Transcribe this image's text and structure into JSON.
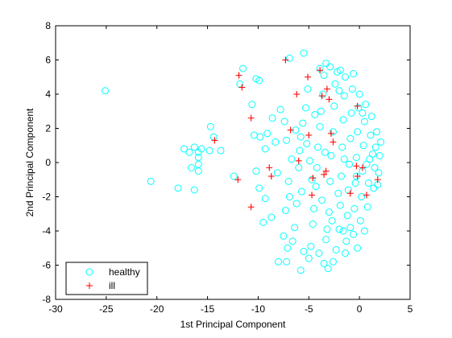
{
  "chart_data": {
    "type": "scatter",
    "title": "",
    "xlabel": "1st Principal Component",
    "ylabel": "2nd Principal Component",
    "xlim": [
      -30,
      5
    ],
    "ylim": [
      -8,
      8
    ],
    "x_ticks": [
      "-30",
      "-25",
      "-20",
      "-15",
      "-10",
      "-5",
      "0",
      "5"
    ],
    "y_ticks": [
      "-8",
      "-6",
      "-4",
      "-2",
      "0",
      "2",
      "4",
      "6",
      "8"
    ],
    "x_tick_values": [
      -30,
      -25,
      -20,
      -15,
      -10,
      -5,
      0,
      5
    ],
    "y_tick_values": [
      -8,
      -6,
      -4,
      -2,
      0,
      2,
      4,
      6,
      8
    ],
    "grid": false,
    "legend_position": "bottom-left",
    "colors": {
      "healthy": "#00ffff",
      "ill": "#ff0000",
      "axes": "#000000"
    },
    "series": [
      {
        "name": "healthy",
        "marker": "circle",
        "points": [
          [
            -25.1,
            4.2
          ],
          [
            -20.6,
            -1.1
          ],
          [
            -17.9,
            -1.5
          ],
          [
            -16.3,
            -1.6
          ],
          [
            -17.3,
            0.8
          ],
          [
            -16.8,
            0.6
          ],
          [
            -16.6,
            -0.3
          ],
          [
            -16.3,
            0.9
          ],
          [
            -15.9,
            0.6
          ],
          [
            -15.9,
            0.3
          ],
          [
            -15.9,
            -0.1
          ],
          [
            -15.9,
            -0.5
          ],
          [
            -15.6,
            0.8
          ],
          [
            -14.7,
            2.1
          ],
          [
            -14.8,
            0.7
          ],
          [
            -14.4,
            1.5
          ],
          [
            -13.7,
            0.7
          ],
          [
            -12.4,
            -0.8
          ],
          [
            -11.5,
            5.5
          ],
          [
            -11.8,
            4.6
          ],
          [
            -10.2,
            4.9
          ],
          [
            -9.9,
            4.8
          ],
          [
            -10.6,
            3.4
          ],
          [
            -10.4,
            1.6
          ],
          [
            -9.8,
            1.5
          ],
          [
            -9.1,
            1.7
          ],
          [
            -9.3,
            0.8
          ],
          [
            -10.2,
            -0.5
          ],
          [
            -9.9,
            -1.5
          ],
          [
            -9.3,
            -2.1
          ],
          [
            -9.5,
            -3.5
          ],
          [
            -8.7,
            -3.2
          ],
          [
            -8.6,
            2.6
          ],
          [
            -8.3,
            1.2
          ],
          [
            -8.1,
            -0.6
          ],
          [
            -7.8,
            3.1
          ],
          [
            -7.4,
            2.4
          ],
          [
            -7.2,
            1.3
          ],
          [
            -7.0,
            -1.1
          ],
          [
            -6.9,
            -2.0
          ],
          [
            -7.3,
            -2.8
          ],
          [
            -7.5,
            -4.3
          ],
          [
            -7.1,
            -5.0
          ],
          [
            -8.0,
            -5.8
          ],
          [
            -7.2,
            -5.8
          ],
          [
            -6.6,
            -4.6
          ],
          [
            -6.4,
            -3.8
          ],
          [
            -6.2,
            -2.4
          ],
          [
            -6.0,
            -0.3
          ],
          [
            -5.9,
            0.7
          ],
          [
            -5.8,
            1.5
          ],
          [
            -5.6,
            2.3
          ],
          [
            -5.3,
            3.2
          ],
          [
            -5.1,
            4.3
          ],
          [
            -5.5,
            6.4
          ],
          [
            -6.9,
            6.1
          ],
          [
            -5.5,
            -5.2
          ],
          [
            -5.8,
            -6.3
          ],
          [
            -5.0,
            -5.6
          ],
          [
            -4.8,
            -4.9
          ],
          [
            -4.6,
            -3.6
          ],
          [
            -4.5,
            -2.7
          ],
          [
            -4.3,
            -1.4
          ],
          [
            -4.2,
            -0.3
          ],
          [
            -4.1,
            0.9
          ],
          [
            -3.9,
            2.1
          ],
          [
            -3.8,
            3.0
          ],
          [
            -3.6,
            4.0
          ],
          [
            -3.5,
            5.1
          ],
          [
            -3.3,
            5.8
          ],
          [
            -3.5,
            -5.9
          ],
          [
            -3.1,
            -6.2
          ],
          [
            -3.3,
            -4.5
          ],
          [
            -3.0,
            -2.9
          ],
          [
            -2.9,
            -1.1
          ],
          [
            -2.8,
            0.4
          ],
          [
            -2.6,
            1.8
          ],
          [
            -2.5,
            3.3
          ],
          [
            -2.4,
            4.6
          ],
          [
            -2.2,
            5.3
          ],
          [
            -2.3,
            -5.1
          ],
          [
            -2.0,
            -3.9
          ],
          [
            -1.9,
            -2.5
          ],
          [
            -1.8,
            -0.8
          ],
          [
            -1.7,
            0.9
          ],
          [
            -1.6,
            2.5
          ],
          [
            -1.5,
            3.9
          ],
          [
            -1.4,
            5.0
          ],
          [
            -1.3,
            -4.6
          ],
          [
            -1.2,
            -3.1
          ],
          [
            -1.1,
            -1.6
          ],
          [
            -1.0,
            -0.1
          ],
          [
            -0.9,
            1.4
          ],
          [
            -0.8,
            2.9
          ],
          [
            -0.7,
            4.3
          ],
          [
            -0.6,
            -4.2
          ],
          [
            -0.5,
            -2.7
          ],
          [
            -0.4,
            -1.2
          ],
          [
            -0.3,
            0.3
          ],
          [
            -0.2,
            1.8
          ],
          [
            -0.1,
            3.2
          ],
          [
            0.0,
            4.0
          ],
          [
            0.1,
            -3.4
          ],
          [
            0.2,
            -2.0
          ],
          [
            0.3,
            -0.5
          ],
          [
            0.4,
            1.0
          ],
          [
            0.5,
            2.4
          ],
          [
            0.6,
            3.4
          ],
          [
            0.8,
            -2.6
          ],
          [
            0.9,
            -1.2
          ],
          [
            1.0,
            0.2
          ],
          [
            1.1,
            1.6
          ],
          [
            1.2,
            2.7
          ],
          [
            1.4,
            -1.5
          ],
          [
            1.5,
            -0.3
          ],
          [
            1.6,
            0.9
          ],
          [
            1.7,
            1.8
          ],
          [
            1.9,
            -0.6
          ],
          [
            2.0,
            0.4
          ],
          [
            2.1,
            1.2
          ],
          [
            -4.7,
            -1.0
          ],
          [
            -4.9,
            0.1
          ],
          [
            -5.2,
            1.1
          ],
          [
            -3.7,
            -2.2
          ],
          [
            -3.4,
            0.6
          ],
          [
            -2.7,
            -3.4
          ],
          [
            -2.1,
            -1.8
          ],
          [
            -1.5,
            0.2
          ],
          [
            -0.9,
            -3.8
          ],
          [
            -0.3,
            -0.8
          ],
          [
            0.3,
            2.9
          ],
          [
            0.7,
            -0.1
          ],
          [
            1.3,
            0.5
          ],
          [
            -6.3,
            1.9
          ],
          [
            -6.7,
            0.2
          ],
          [
            -5.7,
            -1.7
          ],
          [
            -4.4,
            2.8
          ],
          [
            -3.2,
            -3.9
          ],
          [
            -2.0,
            4.2
          ],
          [
            -1.4,
            -5.3
          ],
          [
            -0.6,
            5.2
          ],
          [
            -0.2,
            -5.0
          ],
          [
            0.5,
            -4.0
          ],
          [
            -3.9,
            5.5
          ],
          [
            -2.9,
            5.6
          ],
          [
            -1.9,
            5.4
          ],
          [
            -4.0,
            -5.3
          ],
          [
            -2.6,
            -5.8
          ],
          [
            -1.6,
            -4.0
          ],
          [
            1.8,
            -1.3
          ]
        ]
      },
      {
        "name": "ill",
        "marker": "plus",
        "points": [
          [
            -7.3,
            6.0
          ],
          [
            -11.9,
            5.1
          ],
          [
            -11.6,
            4.4
          ],
          [
            -5.1,
            5.0
          ],
          [
            -3.9,
            5.4
          ],
          [
            -6.2,
            4.0
          ],
          [
            -3.7,
            3.9
          ],
          [
            -3.2,
            4.3
          ],
          [
            -3.0,
            3.7
          ],
          [
            -0.2,
            3.3
          ],
          [
            -14.3,
            1.3
          ],
          [
            -10.7,
            2.6
          ],
          [
            -6.8,
            1.9
          ],
          [
            -5.0,
            1.6
          ],
          [
            -2.8,
            1.7
          ],
          [
            -2.6,
            1.2
          ],
          [
            -6.0,
            0.1
          ],
          [
            -12.0,
            -1.0
          ],
          [
            -8.9,
            -0.3
          ],
          [
            -8.7,
            -0.8
          ],
          [
            -4.6,
            -0.9
          ],
          [
            -3.5,
            -0.7
          ],
          [
            -3.3,
            -0.5
          ],
          [
            -4.7,
            -1.9
          ],
          [
            -0.9,
            -1.8
          ],
          [
            -10.7,
            -2.6
          ],
          [
            -0.3,
            -0.2
          ],
          [
            0.3,
            -0.3
          ],
          [
            -0.2,
            -0.8
          ],
          [
            1.8,
            -1.0
          ],
          [
            0.7,
            -1.9
          ]
        ]
      }
    ]
  }
}
